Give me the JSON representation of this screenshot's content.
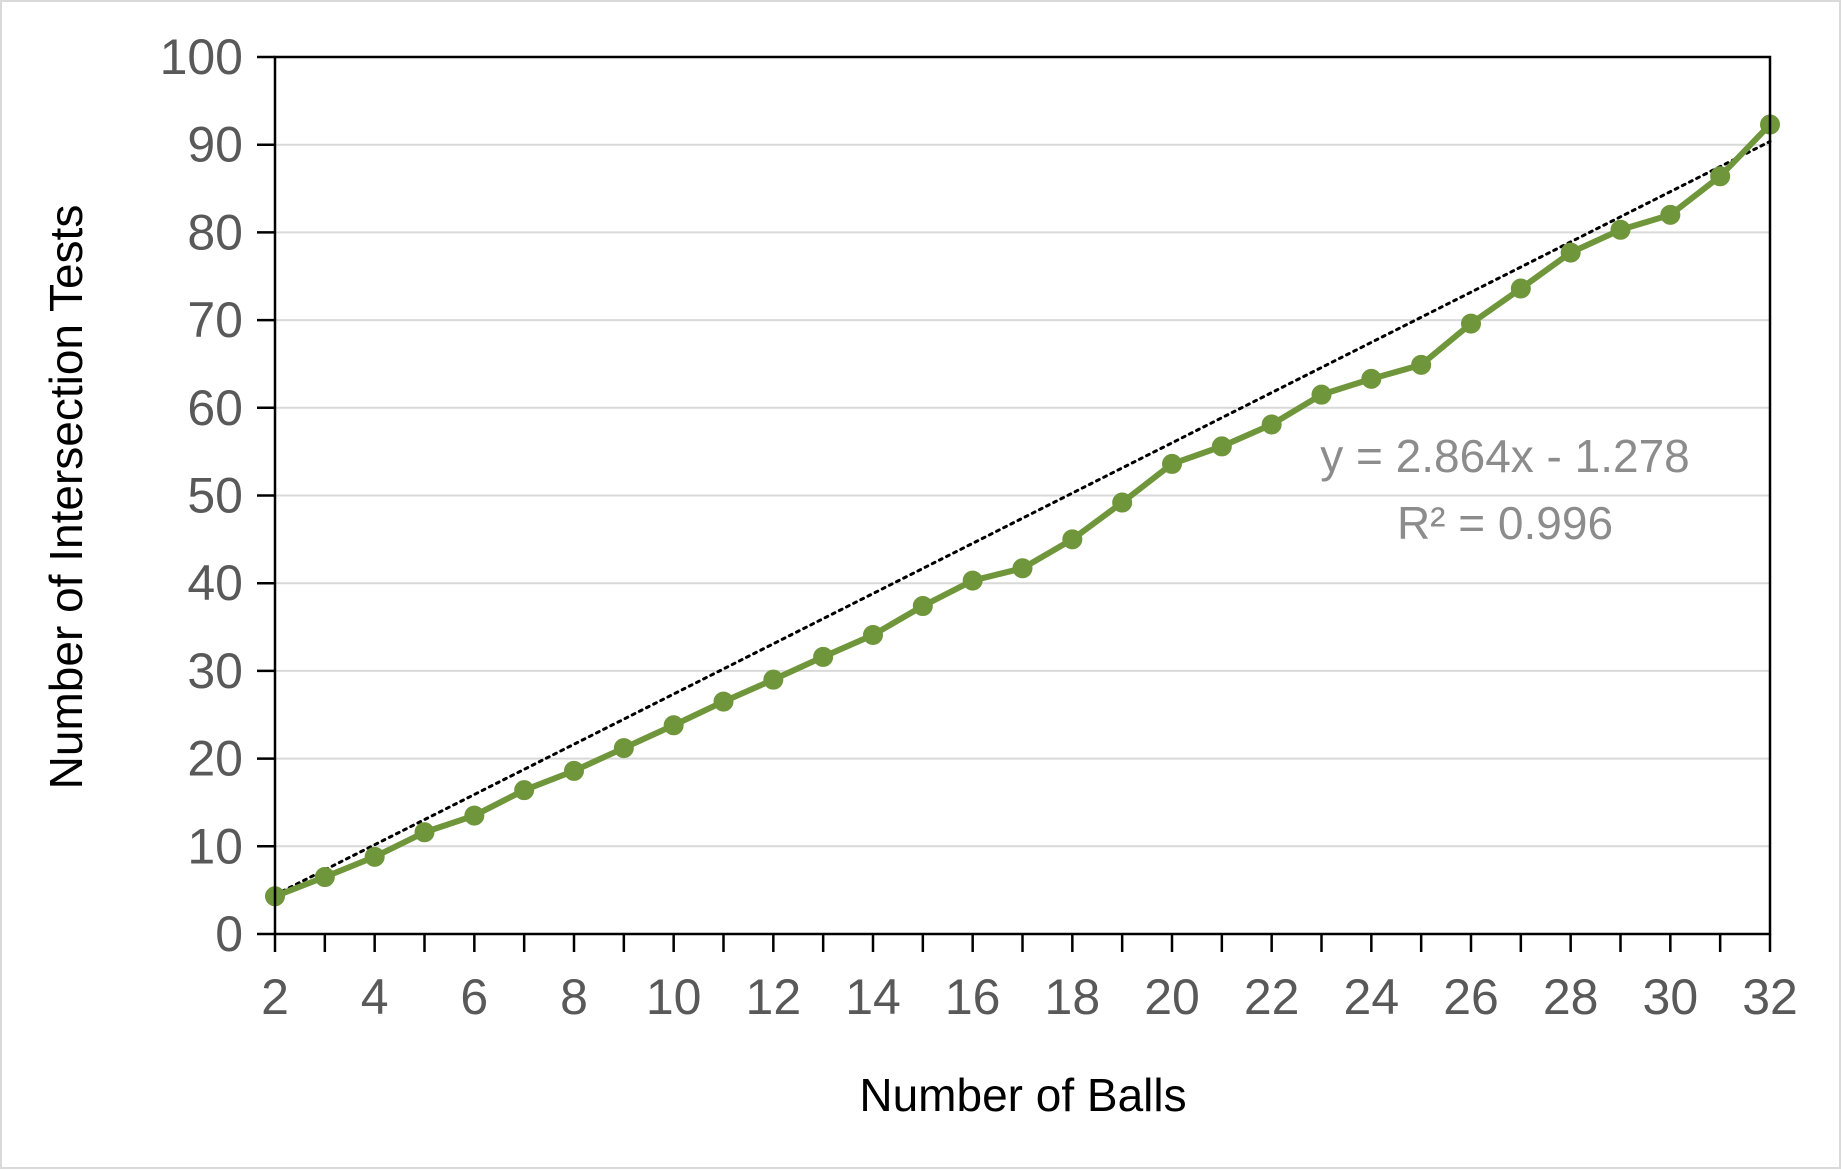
{
  "chart_data": {
    "type": "line",
    "title": "",
    "xlabel": "Number of Balls",
    "ylabel": "Number of Intersection Tests",
    "xlim": [
      2,
      32
    ],
    "ylim": [
      0,
      100
    ],
    "x_ticks": [
      2,
      4,
      6,
      8,
      10,
      12,
      14,
      16,
      18,
      20,
      22,
      24,
      26,
      28,
      30,
      32
    ],
    "y_ticks": [
      0,
      10,
      20,
      30,
      40,
      50,
      60,
      70,
      80,
      90,
      100
    ],
    "grid": "horizontal",
    "legend": "none",
    "series": [
      {
        "color": "#70963c",
        "marker": "circle",
        "x": [
          2,
          3,
          4,
          5,
          6,
          7,
          8,
          9,
          10,
          11,
          12,
          13,
          14,
          15,
          16,
          17,
          18,
          19,
          20,
          21,
          22,
          23,
          24,
          25,
          26,
          27,
          28,
          29,
          30,
          31,
          32
        ],
        "y": [
          4.3,
          6.5,
          8.8,
          11.6,
          13.5,
          16.4,
          18.6,
          21.2,
          23.8,
          26.5,
          29.0,
          31.6,
          34.1,
          37.4,
          40.3,
          41.7,
          45.0,
          49.2,
          53.6,
          55.6,
          58.1,
          61.5,
          63.3,
          64.9,
          69.6,
          73.6,
          77.7,
          80.3,
          82.0,
          86.4,
          92.3
        ]
      }
    ],
    "trendline": {
      "type": "linear",
      "slope": 2.864,
      "intercept": -1.278,
      "color": "#000000",
      "style": "dotted",
      "equation_label": "y = 2.864x - 1.278",
      "r2_label": "R² = 0.996"
    }
  }
}
